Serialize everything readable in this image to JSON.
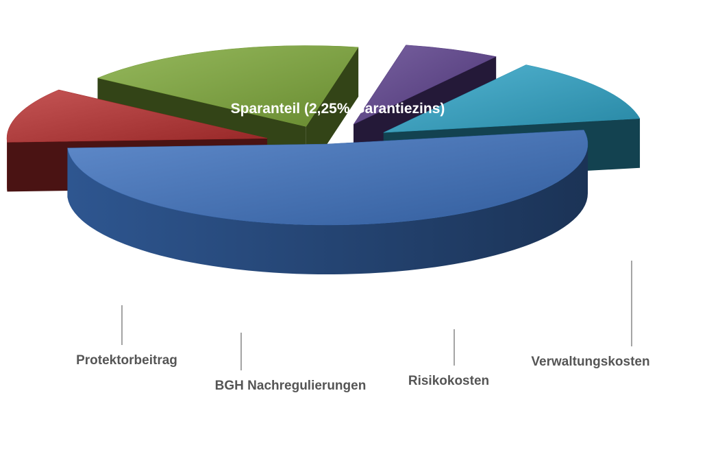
{
  "chart_data": {
    "type": "pie",
    "style": "3d-exploded",
    "title": "",
    "slices": [
      {
        "label": "Sparanteil (2,25% Garantiezins)",
        "value": 52,
        "color": "#3D72C0",
        "label_placement": "inside"
      },
      {
        "label": "Verwaltungskosten",
        "value": 11,
        "color": "#B83030",
        "label_placement": "callout"
      },
      {
        "label": "Risikokosten",
        "value": 18,
        "color": "#7FAA3A",
        "label_placement": "callout"
      },
      {
        "label": "BGH Nachregulierungen",
        "value": 6,
        "color": "#5B3F8C",
        "label_placement": "callout"
      },
      {
        "label": "Protektorbeitrag",
        "value": 13,
        "color": "#2FA5C8",
        "label_placement": "callout"
      }
    ],
    "legend": "none"
  }
}
